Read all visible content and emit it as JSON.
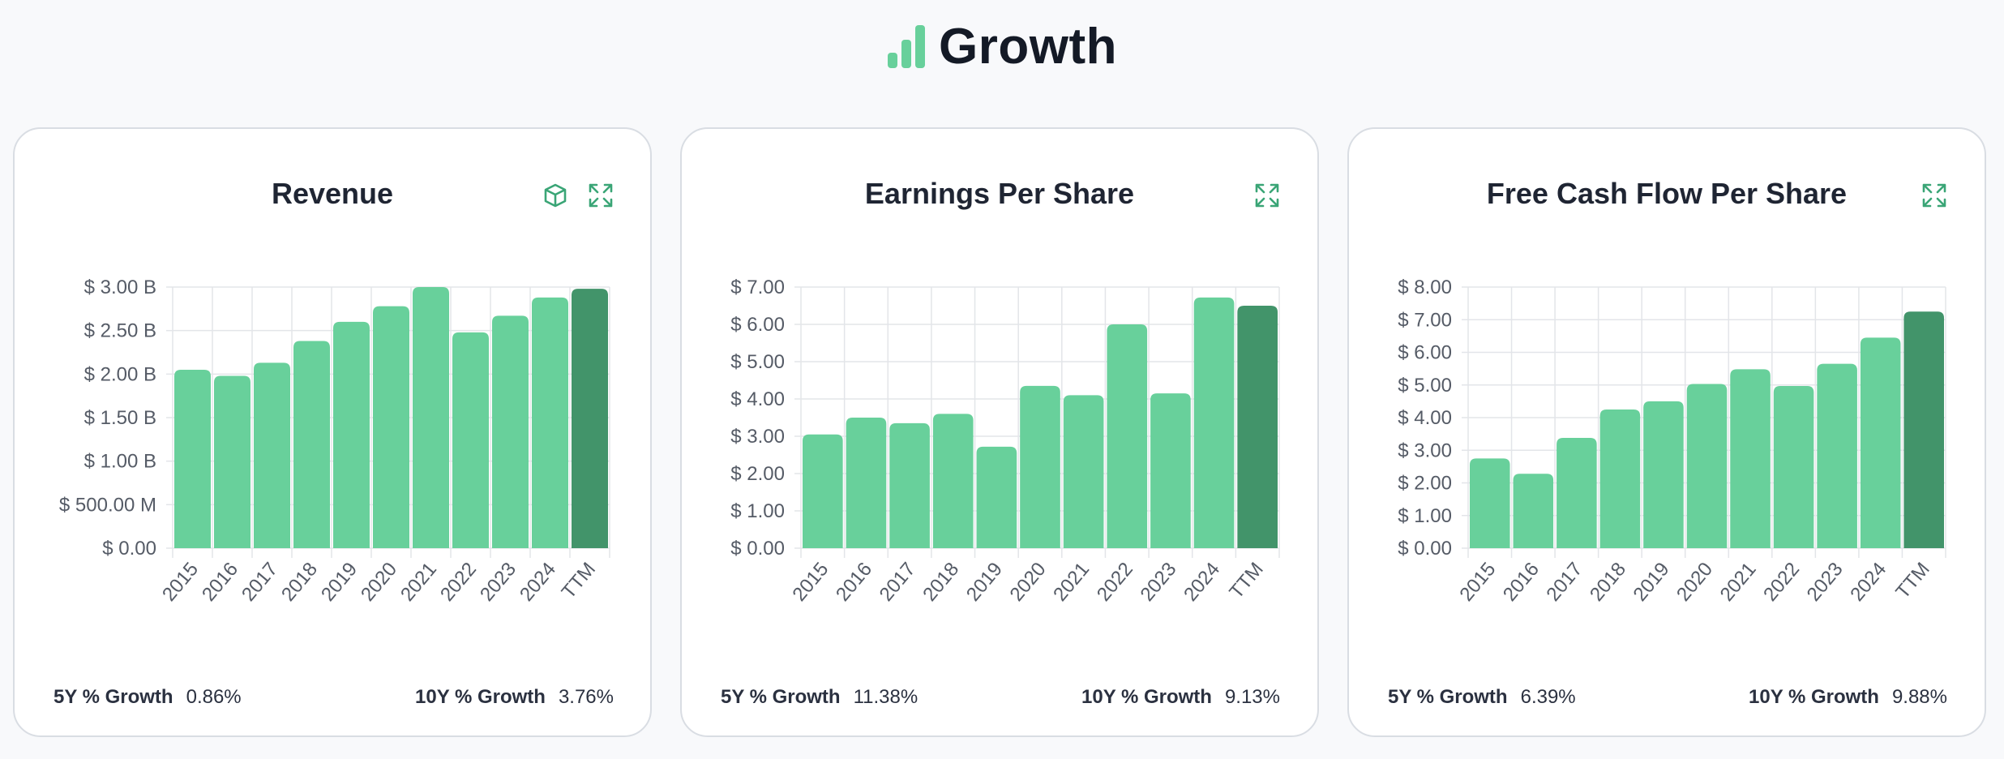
{
  "header": {
    "title": "Growth"
  },
  "colors": {
    "bar": "#68d09b",
    "bar_ttm": "#42946a",
    "grid": "#e3e5e9",
    "icon": "#3aa576"
  },
  "cards": [
    {
      "title": "Revenue",
      "icons": [
        "3d-box-icon",
        "expand-icon"
      ],
      "growth": {
        "five_label": "5Y % Growth",
        "five_value": "0.86%",
        "ten_label": "10Y % Growth",
        "ten_value": "3.76%"
      }
    },
    {
      "title": "Earnings Per Share",
      "icons": [
        "expand-icon"
      ],
      "growth": {
        "five_label": "5Y % Growth",
        "five_value": "11.38%",
        "ten_label": "10Y % Growth",
        "ten_value": "9.13%"
      }
    },
    {
      "title": "Free Cash Flow Per Share",
      "icons": [
        "expand-icon"
      ],
      "growth": {
        "five_label": "5Y % Growth",
        "five_value": "6.39%",
        "ten_label": "10Y % Growth",
        "ten_value": "9.88%"
      }
    }
  ],
  "chart_data": [
    {
      "type": "bar",
      "title": "Revenue",
      "categories": [
        "2015",
        "2016",
        "2017",
        "2018",
        "2019",
        "2020",
        "2021",
        "2022",
        "2023",
        "2024",
        "TTM"
      ],
      "values": [
        2.05,
        1.98,
        2.13,
        2.38,
        2.6,
        2.78,
        3.0,
        2.48,
        2.67,
        2.88,
        2.98
      ],
      "value_unit": "billions USD",
      "ylim": [
        0,
        3.0
      ],
      "yticks": [
        0,
        0.5,
        1.0,
        1.5,
        2.0,
        2.5,
        3.0
      ],
      "ytick_labels": [
        "$ 0.00",
        "$ 500.00 M",
        "$ 1.00 B",
        "$ 1.50 B",
        "$ 2.00 B",
        "$ 2.50 B",
        "$ 3.00 B"
      ],
      "highlight_last": true,
      "grid": true
    },
    {
      "type": "bar",
      "title": "Earnings Per Share",
      "categories": [
        "2015",
        "2016",
        "2017",
        "2018",
        "2019",
        "2020",
        "2021",
        "2022",
        "2023",
        "2024",
        "TTM"
      ],
      "values": [
        3.05,
        3.5,
        3.35,
        3.6,
        2.72,
        4.35,
        4.1,
        6.0,
        4.15,
        6.72,
        6.5
      ],
      "ylim": [
        0,
        7.0
      ],
      "yticks": [
        0,
        1,
        2,
        3,
        4,
        5,
        6,
        7
      ],
      "ytick_labels": [
        "$ 0.00",
        "$ 1.00",
        "$ 2.00",
        "$ 3.00",
        "$ 4.00",
        "$ 5.00",
        "$ 6.00",
        "$ 7.00"
      ],
      "highlight_last": true,
      "grid": true
    },
    {
      "type": "bar",
      "title": "Free Cash Flow Per Share",
      "categories": [
        "2015",
        "2016",
        "2017",
        "2018",
        "2019",
        "2020",
        "2021",
        "2022",
        "2023",
        "2024",
        "TTM"
      ],
      "values": [
        2.75,
        2.28,
        3.38,
        4.25,
        4.5,
        5.03,
        5.48,
        4.97,
        5.65,
        6.45,
        7.25
      ],
      "ylim": [
        0,
        8.0
      ],
      "yticks": [
        0,
        1,
        2,
        3,
        4,
        5,
        6,
        7,
        8
      ],
      "ytick_labels": [
        "$ 0.00",
        "$ 1.00",
        "$ 2.00",
        "$ 3.00",
        "$ 4.00",
        "$ 5.00",
        "$ 6.00",
        "$ 7.00",
        "$ 8.00"
      ],
      "highlight_last": true,
      "grid": true
    }
  ]
}
